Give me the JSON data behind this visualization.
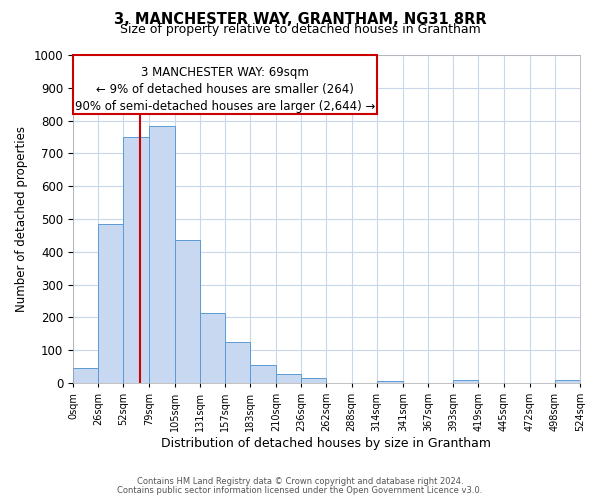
{
  "title": "3, MANCHESTER WAY, GRANTHAM, NG31 8RR",
  "subtitle": "Size of property relative to detached houses in Grantham",
  "xlabel": "Distribution of detached houses by size in Grantham",
  "ylabel": "Number of detached properties",
  "bin_edges": [
    0,
    26,
    52,
    79,
    105,
    131,
    157,
    183,
    210,
    236,
    262,
    288,
    314,
    341,
    367,
    393,
    419,
    445,
    472,
    498,
    524
  ],
  "bar_heights": [
    45,
    485,
    750,
    785,
    435,
    215,
    125,
    55,
    28,
    14,
    0,
    0,
    5,
    0,
    0,
    8,
    0,
    0,
    0,
    8
  ],
  "bar_color": "#c8d8f0",
  "bar_edge_color": "#5b9bd5",
  "property_line_x": 69,
  "property_line_color": "#cc0000",
  "ylim": [
    0,
    1000
  ],
  "xlim": [
    0,
    524
  ],
  "annotation_line1": "3 MANCHESTER WAY: 69sqm",
  "annotation_line2": "← 9% of detached houses are smaller (264)",
  "annotation_line3": "90% of semi-detached houses are larger (2,644) →",
  "annotation_box_color": "#cc0000",
  "footer_line1": "Contains HM Land Registry data © Crown copyright and database right 2024.",
  "footer_line2": "Contains public sector information licensed under the Open Government Licence v3.0.",
  "tick_labels": [
    "0sqm",
    "26sqm",
    "52sqm",
    "79sqm",
    "105sqm",
    "131sqm",
    "157sqm",
    "183sqm",
    "210sqm",
    "236sqm",
    "262sqm",
    "288sqm",
    "314sqm",
    "341sqm",
    "367sqm",
    "393sqm",
    "419sqm",
    "445sqm",
    "472sqm",
    "498sqm",
    "524sqm"
  ],
  "background_color": "#ffffff",
  "grid_color": "#c8d8ea"
}
